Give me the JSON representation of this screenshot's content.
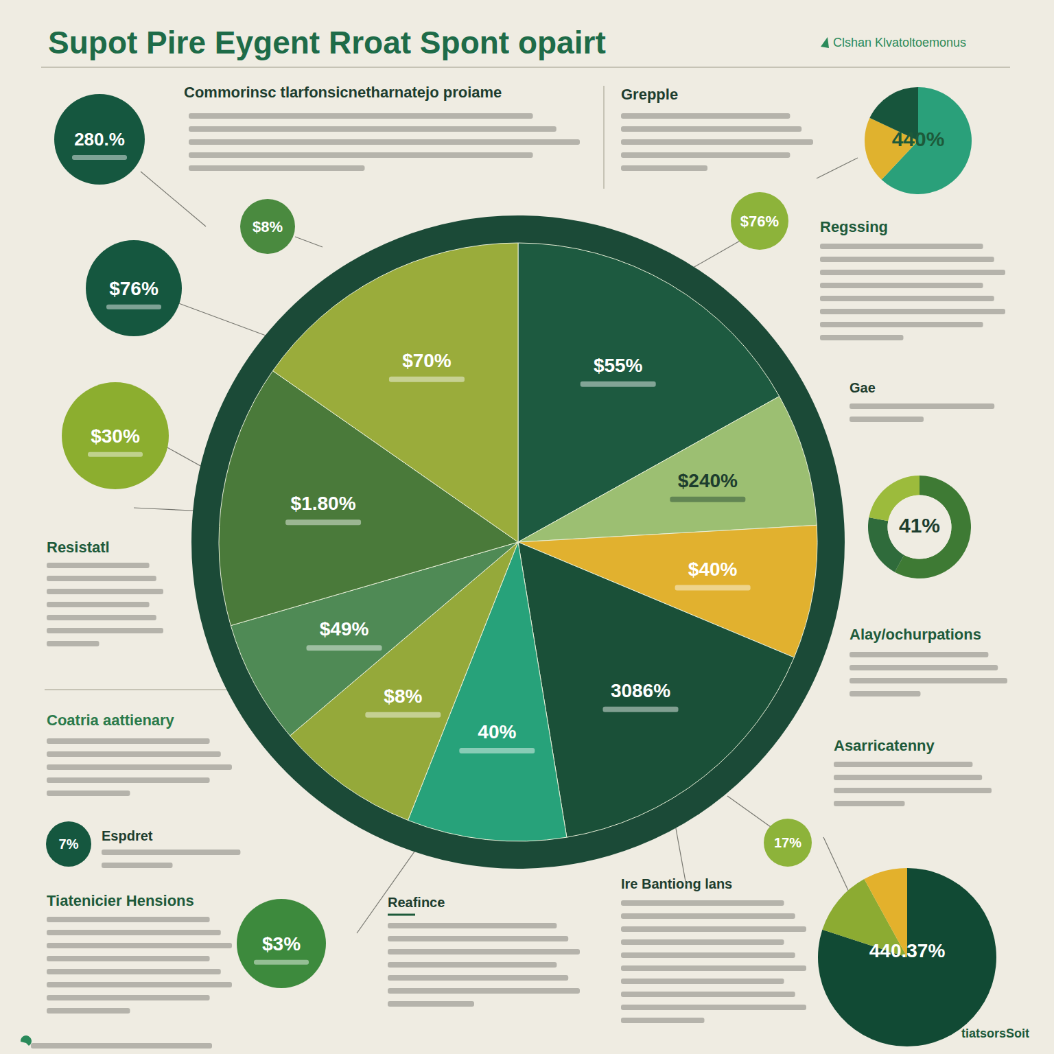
{
  "title": "Supot Pire Eygent Rroat Spont opairt",
  "brand": "Clshan Klvatoltoemonus",
  "footer": "tiatsorsSoit",
  "headings": [
    "Commorinsc tlarfonsicnetharnatejo proiame",
    "Grepple",
    "Regssing",
    "Gae",
    "Alay/ochurpations",
    "Asarricatenny",
    "Resistatl",
    "Coatria aattienary",
    "Espdret",
    "Tiatenicier Hensions",
    "Reafince",
    "Ire Bantiong lans"
  ],
  "bubbles": [
    {
      "label": "280.%"
    },
    {
      "label": "$8%"
    },
    {
      "label": "$76%"
    },
    {
      "label": "$30%"
    },
    {
      "label": "$76%"
    },
    {
      "label": "17%"
    },
    {
      "label": "7%"
    },
    {
      "label": "$3%"
    }
  ],
  "chart_data": [
    {
      "type": "pie",
      "categories": [
        "$55%",
        "$240%",
        "$40%",
        "3086%",
        "40%",
        "$8%",
        "$49%",
        "$1.80%",
        "$70%"
      ],
      "values": [
        16.9,
        7.2,
        7.2,
        16.1,
        8.6,
        7.8,
        6.7,
        14.2,
        15.3
      ],
      "colors": [
        "#1d5a40",
        "#9cbf72",
        "#e1b12f",
        "#1a5038",
        "#27a27a",
        "#95a93a",
        "#4f8a55",
        "#4a7a3a",
        "#9aac3b"
      ]
    },
    {
      "type": "pie",
      "values": [
        62,
        20,
        18
      ],
      "colors": [
        "#2aa07a",
        "#e0b22e",
        "#17553c"
      ],
      "annotations": [
        "440%"
      ]
    },
    {
      "type": "donut",
      "values": [
        58,
        20,
        22
      ],
      "colors": [
        "#3e7a34",
        "#2f6b3b",
        "#9cbb3c"
      ],
      "annotations": [
        "41%"
      ]
    },
    {
      "type": "pie",
      "values": [
        80,
        12,
        8
      ],
      "colors": [
        "#114a34",
        "#8cab32",
        "#e3b12c"
      ],
      "annotations": [
        "440.37%"
      ]
    }
  ]
}
